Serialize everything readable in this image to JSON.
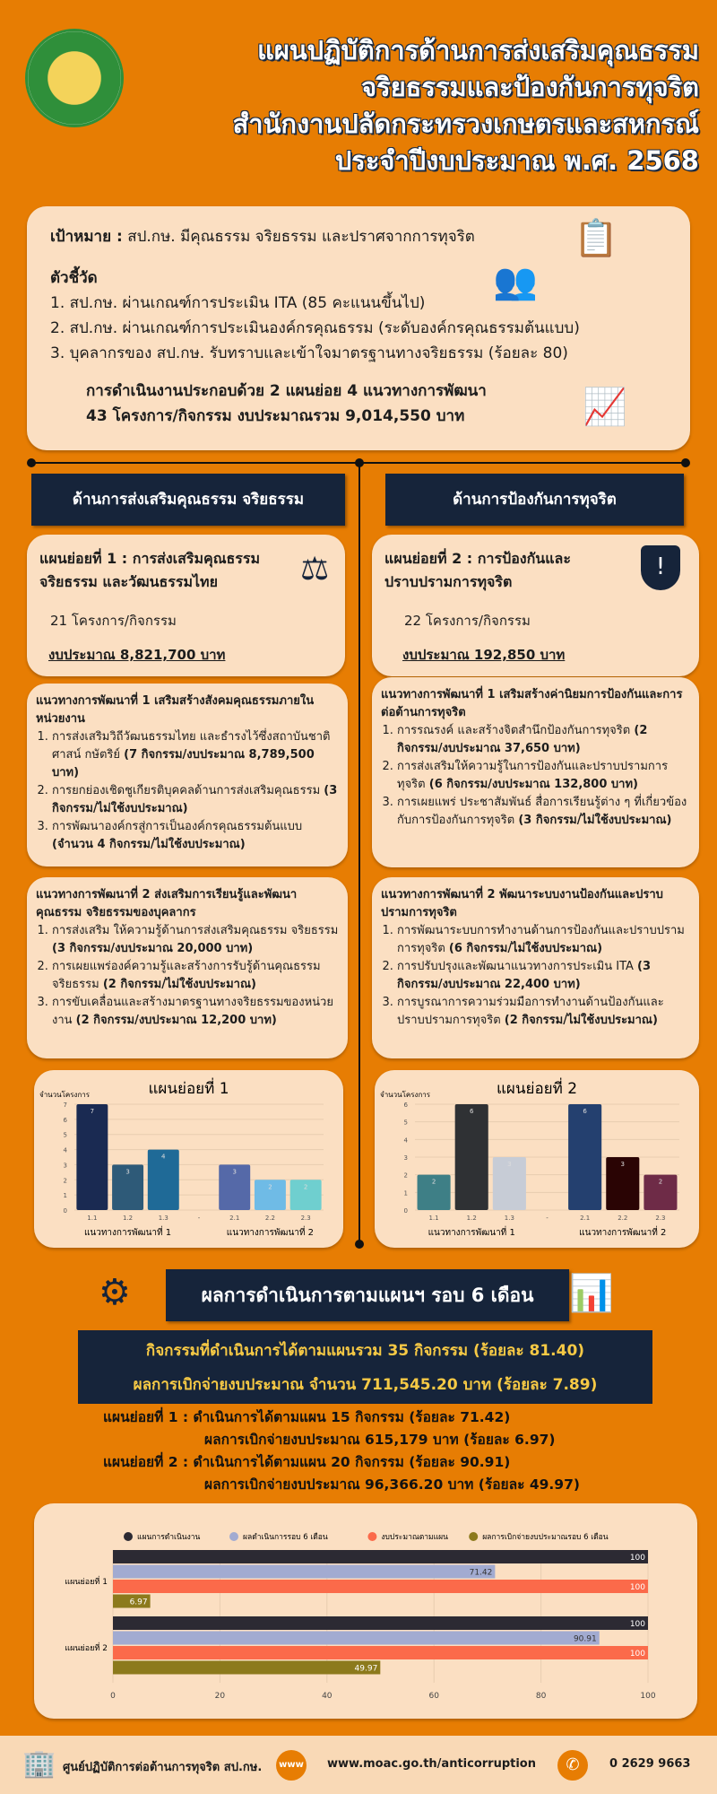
{
  "header": {
    "title_lines": [
      "แผนปฏิบัติการด้านการส่งเสริมคุณธรรม",
      "จริยธรรมและป้องกันการทุจริต",
      "สำนักงานปลัดกระทรวงเกษตรและสหกรณ์",
      "ประจำปีงบประมาณ พ.ศ. 2568"
    ]
  },
  "goal": {
    "label": "เป้าหมาย :",
    "text": "สป.กษ. มีคุณธรรม  จริยธรรม และปราศจากการทุจริต",
    "indicators_title": "ตัวชี้วัด",
    "indicators": [
      "1. สป.กษ. ผ่านเกณฑ์การประเมิน ITA  (85 คะแนนขึ้นไป)",
      "2. สป.กษ. ผ่านเกณฑ์การประเมินองค์กรคุณธรรม (ระดับองค์กรคุณธรรมต้นแบบ)",
      "3. บุคลากรของ สป.กษ. รับทราบและเข้าใจมาตรฐานทางจริยธรรม (ร้อยละ 80)"
    ],
    "summary_lines": [
      "การดำเนินงานประกอบด้วย 2 แผนย่อย 4 แนวทางการพัฒนา",
      "43 โครงการ/กิจกรรม งบประมาณรวม 9,014,550 บาท"
    ]
  },
  "left": {
    "header": "ด้านการส่งเสริมคุณธรรม จริยธรรม",
    "plan_title": [
      "แผนย่อยที่ 1 : การส่งเสริมคุณธรรม",
      "จริยธรรม และวัฒนธรรมไทย"
    ],
    "count": "21 โครงการ/กิจกรรม",
    "budget": "งบประมาณ 8,821,700 บาท",
    "approach1": {
      "title": "แนวทางการพัฒนาที่ 1 เสริมสร้างสังคมคุณธรรมภายในหน่วยงาน",
      "items": [
        {
          "text": "การส่งเสริมวิถีวัฒนธรรมไทย และธำรงไว้ซึ่งสถาบันชาติ ศาสน์ กษัตริย์ ",
          "bold": "(7 กิจกรรม/งบประมาณ 8,789,500 บาท)"
        },
        {
          "text": "การยกย่องเชิดชูเกียรติบุคคลด้านการส่งเสริมคุณธรรม ",
          "bold": "(3 กิจกรรม/ไม่ใช้งบประมาณ)"
        },
        {
          "text": "การพัฒนาองค์กรสู่การเป็นองค์กรคุณธรรมต้นแบบ ",
          "bold": "(จำนวน 4 กิจกรรม/ไม่ใช้งบประมาณ)"
        }
      ]
    },
    "approach2": {
      "title": "แนวทางการพัฒนาที่ 2 ส่งเสริมการเรียนรู้และพัฒนาคุณธรรม จริยธรรมของบุคลากร",
      "items": [
        {
          "text": "การส่งเสริม ให้ความรู้ด้านการส่งเสริมคุณธรรม จริยธรรม ",
          "bold": "(3 กิจกรรม/งบประมาณ 20,000 บาท)"
        },
        {
          "text": "การเผยแพร่องค์ความรู้และสร้างการรับรู้ด้านคุณธรรม จริยธรรม ",
          "bold": "(2 กิจกรรม/ไม่ใช้งบประมาณ)"
        },
        {
          "text": "การขับเคลื่อนและสร้างมาตรฐานทางจริยธรรมของหน่วยงาน ",
          "bold": "(2 กิจกรรม/งบประมาณ 12,200 บาท)"
        }
      ]
    }
  },
  "right": {
    "header": "ด้านการป้องกันการทุจริต",
    "plan_title": [
      "แผนย่อยที่ 2 : การป้องกันและ",
      "ปราบปรามการทุจริต"
    ],
    "count": "22 โครงการ/กิจกรรม",
    "budget": "งบประมาณ 192,850 บาท",
    "approach1": {
      "title": "แนวทางการพัฒนาที่ 1 เสริมสร้างค่านิยมการป้องกันและการต่อต้านการทุจริต",
      "items": [
        {
          "text": "การรณรงค์ และสร้างจิตสำนึกป้องกันการทุจริต ",
          "bold": "(2 กิจกรรม/งบประมาณ 37,650 บาท)"
        },
        {
          "text": "การส่งเสริมให้ความรู้ในการป้องกันและปราบปรามการทุจริต ",
          "bold": "(6 กิจกรรม/งบประมาณ 132,800 บาท)"
        },
        {
          "text": "การเผยแพร่ ประชาสัมพันธ์ สื่อการเรียนรู้ต่าง ๆ ที่เกี่ยวข้องกับการป้องกันการทุจริต ",
          "bold": "(3 กิจกรรม/ไม่ใช้งบประมาณ)"
        }
      ]
    },
    "approach2": {
      "title": "แนวทางการพัฒนาที่ 2 พัฒนาระบบงานป้องกันและปราบปรามการทุจริต",
      "items": [
        {
          "text": "การพัฒนาระบบการทำงานด้านการป้องกันและปราบปรามการทุจริต ",
          "bold": "(6 กิจกรรม/ไม่ใช้งบประมาณ)"
        },
        {
          "text": "การปรับปรุงและพัฒนาแนวทางการประเมิน ITA ",
          "bold": "(3 กิจกรรม/งบประมาณ 22,400 บาท)"
        },
        {
          "text": "การบูรณาการความร่วมมือการทำงานด้านป้องกันและปราบปรามการทุจริต ",
          "bold": "(2 กิจกรรม/ไม่ใช้งบประมาณ)"
        }
      ]
    }
  },
  "results": {
    "banner": "ผลการดำเนินการตามแผนฯ รอบ 6 เดือน",
    "stats": [
      "กิจกรรมที่ดำเนินการได้ตามแผนรวม 35 กิจกรรม (ร้อยละ 81.40)",
      "ผลการเบิกจ่ายงบประมาณ จำนวน 711,545.20 บาท (ร้อยละ 7.89)"
    ],
    "lines": [
      "แผนย่อยที่ 1 : ดำเนินการได้ตามแผน 15 กิจกรรม (ร้อยละ 71.42)",
      "ผลการเบิกจ่ายงบประมาณ 615,179 บาท (ร้อยละ 6.97)",
      "แผนย่อยที่ 2 : ดำเนินการได้ตามแผน 20 กิจกรรม (ร้อยละ 90.91)",
      "ผลการเบิกจ่ายงบประมาณ 96,366.20 บาท (ร้อยละ 49.97)"
    ]
  },
  "chart_data": [
    {
      "type": "bar",
      "title": "แผนย่อยที่ 1",
      "ylabel": "จำนวนโครงการ",
      "ylim": [
        0,
        7
      ],
      "categories": [
        "1.1",
        "1.2",
        "1.3",
        "-",
        "2.1",
        "2.2",
        "2.3"
      ],
      "values": [
        7,
        3,
        4,
        null,
        3,
        2,
        2
      ],
      "colors": [
        "#1a2a52",
        "#2e5a78",
        "#1f6a97",
        null,
        "#5569a8",
        "#6fbbe6",
        "#6fcfcf"
      ],
      "group_labels": [
        "แนวทางการพัฒนาที่ 1",
        "แนวทางการพัฒนาที่ 2"
      ]
    },
    {
      "type": "bar",
      "title": "แผนย่อยที่ 2",
      "ylabel": "จำนวนโครงการ",
      "ylim": [
        0,
        6
      ],
      "categories": [
        "1.1",
        "1.2",
        "1.3",
        "-",
        "2.1",
        "2.2",
        "2.3"
      ],
      "values": [
        2,
        6,
        3,
        null,
        6,
        3,
        2
      ],
      "colors": [
        "#3e7f86",
        "#2f3134",
        "#c7ccd6",
        null,
        "#24406f",
        "#2a0404",
        "#6e2b47"
      ],
      "group_labels": [
        "แนวทางการพัฒนาที่ 1",
        "แนวทางการพัฒนาที่ 2"
      ]
    },
    {
      "type": "bar",
      "orientation": "horizontal",
      "categories": [
        "แผนย่อยที่ 1",
        "แผนย่อยที่ 2"
      ],
      "xlim": [
        0,
        100
      ],
      "xticks": [
        0,
        20,
        40,
        60,
        80,
        100
      ],
      "legend": "top",
      "series": [
        {
          "name": "แผนการดำเนินงาน",
          "color": "#2c2a33",
          "values": [
            100,
            100
          ]
        },
        {
          "name": "ผลดำเนินการรอบ 6 เดือน",
          "color": "#a2abd1",
          "values": [
            71.42,
            90.91
          ]
        },
        {
          "name": "งบประมาณตามแผน",
          "color": "#fb6a4a",
          "values": [
            100,
            100
          ]
        },
        {
          "name": "ผลการเบิกจ่ายงบประมาณรอบ 6 เดือน",
          "color": "#8c7a1c",
          "values": [
            6.97,
            49.97
          ]
        }
      ]
    }
  ],
  "footer": {
    "org": "ศูนย์ปฏิบัติการต่อต้านการทุจริต สป.กษ.",
    "web_icon_text": "www",
    "url": "www.moac.go.th/anticorruption",
    "phone": "0 2629 9663"
  }
}
